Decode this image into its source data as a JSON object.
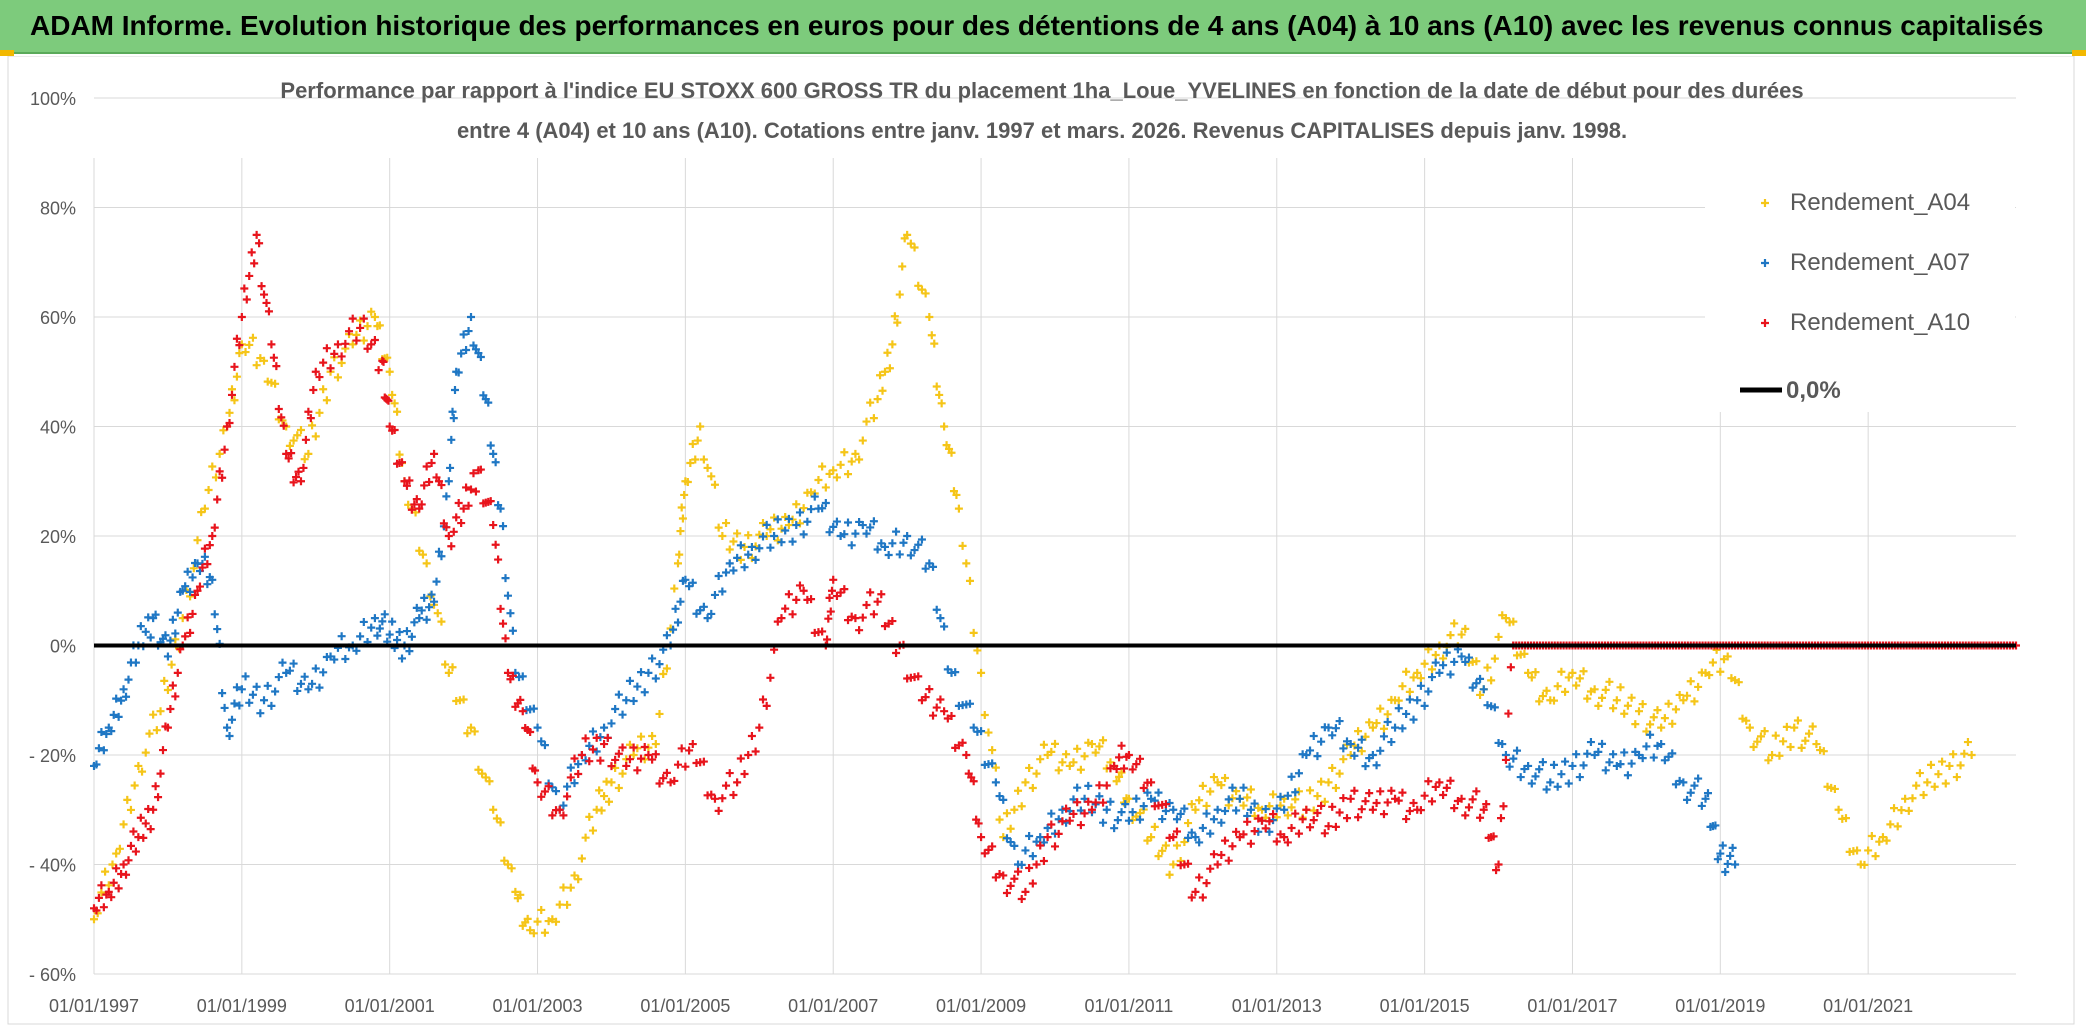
{
  "banner": {
    "title": "ADAM Informe. Evolution historique des performances en euros pour des détentions de 4 ans (A04) à 10 ans (A10) avec les revenus connus capitalisés"
  },
  "colors": {
    "banner_bg": "#7dcb7c",
    "A04": "#f5c518",
    "A07": "#1f77c4",
    "A10": "#e8141c",
    "zero_line": "#000000",
    "grid": "#d9d9d9"
  },
  "chart_data": {
    "type": "scatter",
    "title_line1": "Performance par rapport à l'indice EU STOXX 600 GROSS TR  du placement 1ha_Loue_YVELINES en fonction de la date de début pour des durées",
    "title_line2": "entre 4 (A04) et 10 ans (A10). Cotations entre janv. 1997 et mars. 2026. Revenus CAPITALISES depuis janv. 1998.",
    "xlabel": "",
    "ylabel": "",
    "x_unit": "year",
    "xlim": [
      1997.0,
      2023.0
    ],
    "ylim": [
      -60,
      100
    ],
    "y_ticks": [
      100,
      80,
      60,
      40,
      20,
      0,
      -20,
      -40,
      -60
    ],
    "y_tick_labels": [
      "100%",
      "80%",
      "60%",
      "40%",
      "20%",
      "0%",
      "- 20%",
      "- 40%",
      "- 60%"
    ],
    "x_ticks": [
      1997,
      1999,
      2001,
      2003,
      2005,
      2007,
      2009,
      2011,
      2013,
      2015,
      2017,
      2019,
      2021
    ],
    "x_tick_labels": [
      "01/01/1997",
      "01/01/1999",
      "01/01/2001",
      "01/01/2003",
      "01/01/2005",
      "01/01/2007",
      "01/01/2009",
      "01/01/2011",
      "01/01/2013",
      "01/01/2015",
      "01/01/2017",
      "01/01/2019",
      "01/01/2021"
    ],
    "legend_position": "top-right",
    "series": [
      {
        "name": "Rendement_A04",
        "color": "#f5c518",
        "x": [
          1997.0,
          1997.3,
          1997.6,
          1997.9,
          1998.2,
          1998.5,
          1998.8,
          1999.0,
          1999.3,
          1999.6,
          1999.9,
          2000.2,
          2000.5,
          2000.8,
          2001.0,
          2001.2,
          2001.5,
          2001.8,
          2002.1,
          2002.4,
          2002.7,
          2002.9,
          2003.2,
          2003.5,
          2003.8,
          2004.0,
          2004.3,
          2004.6,
          2004.9,
          2005.0,
          2005.2,
          2005.5,
          2005.8,
          2006.1,
          2006.4,
          2006.7,
          2007.0,
          2007.3,
          2007.6,
          2007.8,
          2008.0,
          2008.3,
          2008.5,
          2008.7,
          2009.0,
          2009.3,
          2009.6,
          2009.9,
          2010.2,
          2010.5,
          2010.8,
          2011.0,
          2011.3,
          2011.6,
          2011.9,
          2012.2,
          2012.5,
          2012.8,
          2013.1,
          2013.4,
          2013.7,
          2014.0,
          2014.3,
          2014.6,
          2014.9,
          2015.2,
          2015.5,
          2015.8,
          2016.1,
          2016.4,
          2016.7,
          2017.0,
          2017.3,
          2017.6,
          2017.9,
          2018.2,
          2018.5,
          2018.8,
          2019.1,
          2019.4,
          2019.7,
          2020.0,
          2020.3,
          2020.6,
          2020.9,
          2021.2,
          2021.5,
          2021.8,
          2022.1,
          2022.4
        ],
        "values": [
          -50,
          -38,
          -22,
          -12,
          5,
          25,
          40,
          55,
          52,
          40,
          35,
          50,
          55,
          60,
          50,
          30,
          15,
          -5,
          -15,
          -30,
          -45,
          -52,
          -50,
          -42,
          -30,
          -25,
          -20,
          -18,
          15,
          30,
          40,
          20,
          18,
          20,
          22,
          28,
          32,
          35,
          45,
          55,
          75,
          60,
          40,
          25,
          -5,
          -35,
          -25,
          -20,
          -22,
          -18,
          -22,
          -28,
          -35,
          -40,
          -30,
          -25,
          -28,
          -30,
          -28,
          -30,
          -25,
          -20,
          -15,
          -10,
          -5,
          0,
          2,
          -8,
          5,
          -5,
          -10,
          -5,
          -8,
          -10,
          -12,
          -15,
          -10,
          -5,
          -2,
          -15,
          -20,
          -15,
          -18,
          -30,
          -40,
          -35,
          -28,
          -25,
          -22,
          -20
        ]
      },
      {
        "name": "Rendement_A07",
        "color": "#1f77c4",
        "x": [
          1997.0,
          1997.2,
          1997.4,
          1997.6,
          1997.8,
          1998.0,
          1998.2,
          1998.4,
          1998.6,
          1998.8,
          1999.0,
          1999.3,
          1999.6,
          1999.9,
          2000.2,
          2000.5,
          2000.8,
          2001.0,
          2001.2,
          2001.4,
          2001.6,
          2001.8,
          2001.9,
          2002.1,
          2002.3,
          2002.5,
          2002.7,
          2003.0,
          2003.3,
          2003.6,
          2003.9,
          2004.2,
          2004.5,
          2004.8,
          2005.0,
          2005.3,
          2005.6,
          2005.9,
          2006.2,
          2006.5,
          2006.8,
          2007.1,
          2007.4,
          2007.7,
          2008.0,
          2008.3,
          2008.6,
          2008.9,
          2009.2,
          2009.5,
          2009.8,
          2010.1,
          2010.4,
          2010.7,
          2011.0,
          2011.3,
          2011.6,
          2011.9,
          2012.2,
          2012.5,
          2012.8,
          2013.1,
          2013.4,
          2013.7,
          2014.0,
          2014.3,
          2014.6,
          2014.9,
          2015.2,
          2015.5,
          2015.8,
          2016.1,
          2016.4,
          2016.7,
          2017.0,
          2017.3,
          2017.6,
          2017.9,
          2018.2,
          2018.5,
          2018.8,
          2019.0,
          2019.2
        ],
        "values": [
          -22,
          -15,
          -8,
          0,
          5,
          -2,
          10,
          15,
          12,
          -15,
          -8,
          -10,
          -5,
          -8,
          -2,
          0,
          5,
          2,
          0,
          5,
          8,
          30,
          50,
          60,
          45,
          25,
          -5,
          -15,
          -30,
          -20,
          -15,
          -10,
          -5,
          0,
          12,
          5,
          15,
          18,
          20,
          22,
          25,
          20,
          22,
          18,
          20,
          15,
          -5,
          -15,
          -25,
          -40,
          -35,
          -30,
          -28,
          -30,
          -32,
          -28,
          -30,
          -35,
          -30,
          -28,
          -32,
          -30,
          -20,
          -15,
          -18,
          -20,
          -15,
          -10,
          -5,
          -2,
          -8,
          -20,
          -22,
          -25,
          -22,
          -20,
          -22,
          -20,
          -18,
          -25,
          -28,
          -38,
          -40
        ]
      },
      {
        "name": "Rendement_A10",
        "color": "#e8141c",
        "x": [
          1997.0,
          1997.2,
          1997.4,
          1997.6,
          1997.8,
          1998.0,
          1998.2,
          1998.4,
          1998.6,
          1998.8,
          1999.0,
          1999.2,
          1999.4,
          1999.6,
          1999.8,
          2000.0,
          2000.3,
          2000.6,
          2000.9,
          2001.0,
          2001.2,
          2001.4,
          2001.6,
          2001.8,
          2002.0,
          2002.2,
          2002.4,
          2002.6,
          2002.8,
          2003.0,
          2003.3,
          2003.6,
          2003.9,
          2004.2,
          2004.5,
          2004.8,
          2005.1,
          2005.4,
          2005.7,
          2006.0,
          2006.3,
          2006.6,
          2006.9,
          2007.0,
          2007.3,
          2007.6,
          2007.9,
          2008.2,
          2008.5,
          2008.8,
          2009.0,
          2009.3,
          2009.6,
          2009.9,
          2010.2,
          2010.5,
          2010.8,
          2011.0,
          2011.3,
          2011.6,
          2011.9,
          2012.2,
          2012.5,
          2012.8,
          2013.1,
          2013.4,
          2013.7,
          2014.0,
          2014.3,
          2014.6,
          2014.9,
          2015.2,
          2015.5,
          2015.8,
          2016.0,
          2016.2
        ],
        "values": [
          -48,
          -45,
          -40,
          -35,
          -30,
          -15,
          0,
          10,
          20,
          40,
          60,
          75,
          55,
          35,
          30,
          50,
          55,
          58,
          52,
          40,
          30,
          25,
          35,
          20,
          25,
          32,
          22,
          -5,
          -12,
          -25,
          -30,
          -20,
          -18,
          -22,
          -20,
          -25,
          -18,
          -28,
          -25,
          -15,
          5,
          10,
          0,
          12,
          5,
          8,
          0,
          -10,
          -12,
          -20,
          -35,
          -42,
          -45,
          -35,
          -32,
          -30,
          -22,
          -20,
          -25,
          -35,
          -45,
          -40,
          -35,
          -32,
          -35,
          -30,
          -33,
          -28,
          -30,
          -28,
          -30,
          -25,
          -28,
          -30,
          -40,
          0
        ]
      }
    ],
    "zero_line_label": "0,0%"
  }
}
